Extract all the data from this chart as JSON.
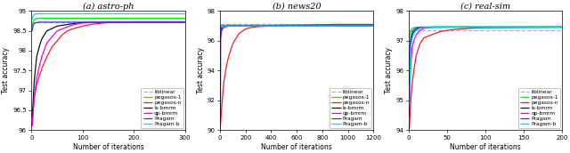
{
  "subplots": [
    {
      "title": "(a) astro-ph",
      "xlabel": "Number of iterations",
      "ylabel": "Test accuracy",
      "xlim": [
        0,
        300
      ],
      "ylim": [
        96,
        99
      ],
      "yticks": [
        96,
        96.5,
        97,
        97.5,
        98,
        98.5,
        99
      ],
      "ytick_labels": [
        "96",
        "96.5",
        "97",
        "97.5",
        "98",
        "98.5",
        "99"
      ],
      "xticks": [
        0,
        100,
        200,
        300
      ],
      "series": {
        "liblinear": {
          "color": "#AAAAFF",
          "linestyle": "dashed",
          "lw": 0.9,
          "x": [
            0,
            300
          ],
          "y": [
            98.72,
            98.72
          ]
        },
        "pegasos-1": {
          "color": "#00EE00",
          "linestyle": "solid",
          "lw": 0.9,
          "x": [
            1,
            3,
            5,
            8,
            10,
            15,
            20,
            30,
            50,
            80,
            100,
            150,
            200,
            300
          ],
          "y": [
            98.6,
            98.72,
            98.78,
            98.8,
            98.81,
            98.82,
            98.82,
            98.82,
            98.82,
            98.82,
            98.82,
            98.82,
            98.82,
            98.82
          ]
        },
        "pegasos-n": {
          "color": "#EE2222",
          "linestyle": "solid",
          "lw": 0.9,
          "x": [
            1,
            3,
            5,
            8,
            10,
            15,
            20,
            25,
            30,
            40,
            50,
            60,
            70,
            80,
            100,
            120,
            150,
            200,
            250,
            300
          ],
          "y": [
            96.1,
            96.5,
            96.8,
            97.0,
            97.15,
            97.35,
            97.55,
            97.7,
            97.85,
            98.1,
            98.25,
            98.4,
            98.5,
            98.55,
            98.62,
            98.67,
            98.71,
            98.73,
            98.73,
            98.73
          ]
        },
        "ls-bmrm": {
          "color": "#111111",
          "linestyle": "solid",
          "lw": 0.9,
          "x": [
            1,
            3,
            5,
            8,
            10,
            15,
            20,
            30,
            50,
            80,
            100,
            150,
            200,
            300
          ],
          "y": [
            96.3,
            96.7,
            97.2,
            97.6,
            97.85,
            98.1,
            98.3,
            98.5,
            98.62,
            98.68,
            98.71,
            98.72,
            98.72,
            98.72
          ]
        },
        "qp-bmrm": {
          "color": "#EE00EE",
          "linestyle": "solid",
          "lw": 0.9,
          "x": [
            1,
            3,
            5,
            8,
            10,
            15,
            20,
            30,
            50,
            80,
            100,
            150,
            200,
            300
          ],
          "y": [
            96.1,
            96.4,
            96.8,
            97.1,
            97.3,
            97.6,
            97.85,
            98.2,
            98.5,
            98.65,
            98.7,
            98.72,
            98.72,
            98.72
          ]
        },
        "Pragam": {
          "color": "#3333EE",
          "linestyle": "solid",
          "lw": 0.9,
          "x": [
            1,
            3,
            5,
            8,
            10,
            15,
            20,
            30,
            50,
            80,
            100,
            150,
            200,
            300
          ],
          "y": [
            98.5,
            98.65,
            98.68,
            98.7,
            98.71,
            98.72,
            98.72,
            98.72,
            98.72,
            98.72,
            98.72,
            98.72,
            98.72,
            98.72
          ]
        },
        "Pragam-b": {
          "color": "#00DDDD",
          "linestyle": "solid",
          "lw": 0.9,
          "x": [
            1,
            3,
            5,
            8,
            10,
            15,
            20,
            30,
            50,
            80,
            100,
            150,
            200,
            300
          ],
          "y": [
            98.78,
            98.88,
            98.91,
            98.93,
            98.93,
            98.93,
            98.93,
            98.93,
            98.93,
            98.93,
            98.93,
            98.93,
            98.93,
            98.93
          ]
        }
      }
    },
    {
      "title": "(b) news20",
      "xlabel": "Number of iterations",
      "ylabel": "Test accuracy",
      "xlim": [
        0,
        1200
      ],
      "ylim": [
        90,
        98
      ],
      "yticks": [
        90,
        92,
        94,
        96,
        98
      ],
      "ytick_labels": [
        "90",
        "92",
        "94",
        "96",
        "98"
      ],
      "xticks": [
        0,
        200,
        400,
        600,
        800,
        1000,
        1200
      ],
      "series": {
        "liblinear": {
          "color": "#AAAAFF",
          "linestyle": "dashed",
          "lw": 0.9,
          "x": [
            0,
            1200
          ],
          "y": [
            97.15,
            97.15
          ]
        },
        "pegasos-1": {
          "color": "#00EE00",
          "linestyle": "solid",
          "lw": 0.9,
          "x": [
            1,
            5,
            10,
            20,
            30,
            50,
            80,
            100,
            150,
            200,
            300,
            500,
            700,
            1000,
            1200
          ],
          "y": [
            96.8,
            96.9,
            97.0,
            97.05,
            97.05,
            97.05,
            97.05,
            97.05,
            97.05,
            97.05,
            97.05,
            97.05,
            97.05,
            97.05,
            97.05
          ]
        },
        "pegasos-n": {
          "color": "#EE2222",
          "linestyle": "solid",
          "lw": 0.9,
          "x": [
            1,
            5,
            10,
            20,
            30,
            40,
            50,
            60,
            80,
            100,
            120,
            150,
            200,
            250,
            300,
            400,
            500,
            700,
            900,
            1100,
            1200
          ],
          "y": [
            90.0,
            90.5,
            91.2,
            92.3,
            93.2,
            93.8,
            94.3,
            94.7,
            95.3,
            95.8,
            96.1,
            96.5,
            96.8,
            96.9,
            96.95,
            97.0,
            97.0,
            97.05,
            97.1,
            97.1,
            97.1
          ]
        },
        "ls-bmrm": {
          "color": "#111111",
          "linestyle": "solid",
          "lw": 0.9,
          "x": [
            1,
            5,
            10,
            20,
            30,
            50,
            80,
            100,
            150,
            200,
            300,
            500,
            700,
            1000,
            1200
          ],
          "y": [
            96.0,
            96.5,
            96.7,
            96.85,
            96.9,
            97.0,
            97.0,
            97.0,
            97.0,
            97.0,
            97.0,
            97.0,
            97.0,
            97.0,
            97.0
          ]
        },
        "qp-bmrm": {
          "color": "#EE00EE",
          "linestyle": "solid",
          "lw": 0.9,
          "x": [
            1,
            5,
            10,
            20,
            30,
            50,
            80,
            100,
            150,
            200,
            300,
            500,
            700,
            1000,
            1200
          ],
          "y": [
            96.0,
            96.4,
            96.6,
            96.8,
            96.9,
            96.95,
            97.0,
            97.0,
            97.0,
            97.0,
            97.0,
            97.0,
            97.0,
            97.0,
            97.0
          ]
        },
        "Pragam": {
          "color": "#3333EE",
          "linestyle": "solid",
          "lw": 0.9,
          "x": [
            1,
            3,
            5,
            8,
            10,
            15,
            20,
            30,
            50,
            80,
            100,
            150,
            200,
            300,
            500,
            700,
            1000,
            1200
          ],
          "y": [
            90.5,
            91.0,
            96.2,
            96.7,
            96.9,
            97.0,
            97.0,
            97.0,
            97.0,
            97.0,
            97.0,
            97.0,
            97.0,
            97.0,
            97.05,
            97.05,
            97.05,
            97.05
          ]
        },
        "Pragam-b": {
          "color": "#00DDDD",
          "linestyle": "solid",
          "lw": 0.9,
          "x": [
            1,
            3,
            5,
            8,
            10,
            15,
            20,
            30,
            50,
            80,
            100,
            150,
            200,
            300,
            500,
            700,
            1000,
            1200
          ],
          "y": [
            96.85,
            97.0,
            97.0,
            97.0,
            97.0,
            97.0,
            97.0,
            97.0,
            97.0,
            97.0,
            97.0,
            97.0,
            97.0,
            97.0,
            97.0,
            97.0,
            97.0,
            97.0
          ]
        }
      }
    },
    {
      "title": "(c) real-sim",
      "xlabel": "Number of iterations",
      "ylabel": "Test accuracy",
      "xlim": [
        0,
        200
      ],
      "ylim": [
        94,
        98
      ],
      "yticks": [
        94,
        95,
        96,
        97,
        98
      ],
      "ytick_labels": [
        "94",
        "95",
        "96",
        "97",
        "98"
      ],
      "xticks": [
        0,
        50,
        100,
        150,
        200
      ],
      "series": {
        "liblinear": {
          "color": "#AAAAFF",
          "linestyle": "dashed",
          "lw": 0.9,
          "x": [
            0,
            200
          ],
          "y": [
            97.35,
            97.35
          ]
        },
        "pegasos-1": {
          "color": "#00EE00",
          "linestyle": "solid",
          "lw": 0.9,
          "x": [
            1,
            2,
            3,
            5,
            7,
            10,
            15,
            20,
            30,
            50,
            80,
            100,
            150,
            200
          ],
          "y": [
            97.1,
            97.25,
            97.35,
            97.42,
            97.44,
            97.45,
            97.46,
            97.46,
            97.46,
            97.46,
            97.46,
            97.46,
            97.46,
            97.46
          ]
        },
        "pegasos-n": {
          "color": "#EE2222",
          "linestyle": "solid",
          "lw": 0.9,
          "x": [
            1,
            2,
            3,
            5,
            7,
            10,
            15,
            20,
            25,
            30,
            35,
            40,
            50,
            60,
            80,
            100,
            150,
            200
          ],
          "y": [
            94.0,
            94.5,
            95.0,
            95.6,
            96.0,
            96.5,
            96.9,
            97.1,
            97.15,
            97.2,
            97.25,
            97.3,
            97.35,
            97.38,
            97.42,
            97.44,
            97.45,
            97.46
          ]
        },
        "ls-bmrm": {
          "color": "#111111",
          "linestyle": "solid",
          "lw": 0.9,
          "x": [
            1,
            2,
            3,
            5,
            7,
            10,
            15,
            20,
            30,
            50,
            80,
            100,
            150,
            200
          ],
          "y": [
            95.5,
            96.5,
            97.0,
            97.2,
            97.3,
            97.38,
            97.43,
            97.45,
            97.46,
            97.46,
            97.46,
            97.46,
            97.46,
            97.46
          ]
        },
        "qp-bmrm": {
          "color": "#EE00EE",
          "linestyle": "solid",
          "lw": 0.9,
          "x": [
            1,
            2,
            3,
            5,
            7,
            10,
            15,
            20,
            30,
            50,
            80,
            100,
            150,
            200
          ],
          "y": [
            94.5,
            95.5,
            96.2,
            96.8,
            97.0,
            97.2,
            97.35,
            97.42,
            97.45,
            97.46,
            97.46,
            97.46,
            97.46,
            97.46
          ]
        },
        "Pragam": {
          "color": "#3333EE",
          "linestyle": "solid",
          "lw": 0.9,
          "x": [
            1,
            2,
            3,
            5,
            7,
            10,
            15,
            20,
            30,
            50,
            80,
            100,
            150,
            200
          ],
          "y": [
            96.0,
            96.8,
            97.1,
            97.3,
            97.38,
            97.43,
            97.45,
            97.46,
            97.46,
            97.46,
            97.46,
            97.46,
            97.46,
            97.46
          ]
        },
        "Pragam-b": {
          "color": "#00DDDD",
          "linestyle": "solid",
          "lw": 0.9,
          "x": [
            1,
            2,
            3,
            5,
            7,
            10,
            15,
            20,
            30,
            50,
            80,
            100,
            150,
            200
          ],
          "y": [
            94.8,
            96.0,
            96.8,
            97.1,
            97.25,
            97.35,
            97.42,
            97.45,
            97.46,
            97.46,
            97.46,
            97.46,
            97.46,
            97.46
          ]
        }
      }
    }
  ],
  "legend_order": [
    "liblinear",
    "pegasos-1",
    "pegasos-n",
    "ls-bmrm",
    "qp-bmrm",
    "Pragam",
    "Pragam-b"
  ],
  "fig_width": 6.4,
  "fig_height": 1.72,
  "background_color": "#FFFFFF"
}
